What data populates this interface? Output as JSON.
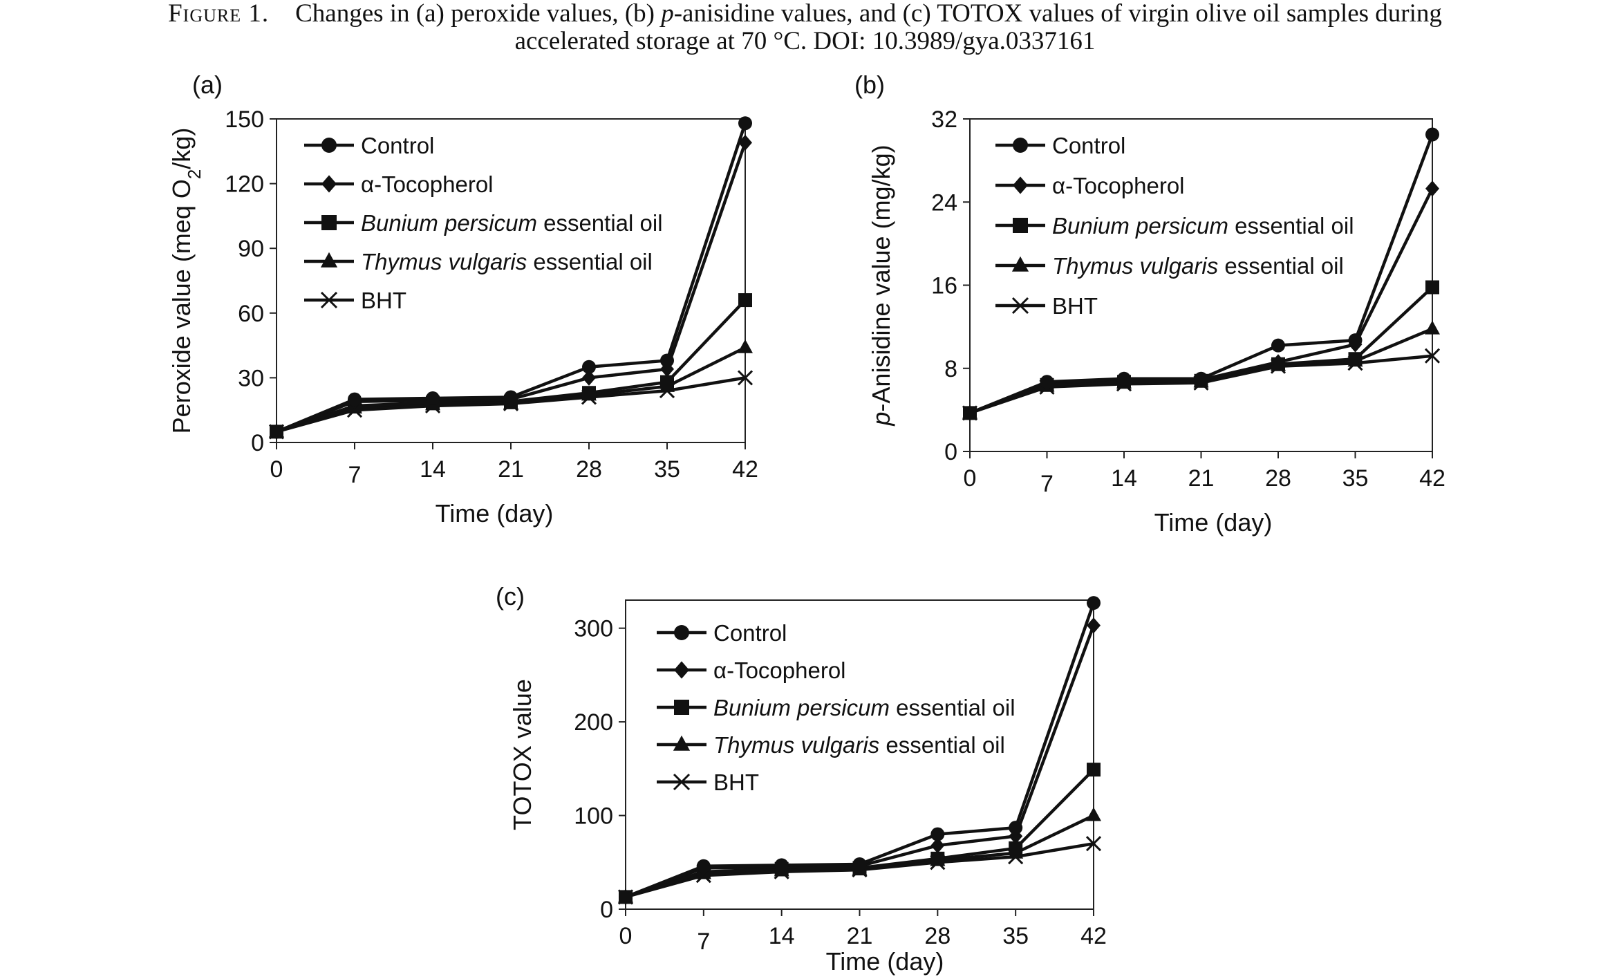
{
  "caption": {
    "label": "Figure 1.",
    "part1": "Changes in (a) peroxide values, (b) ",
    "part2_italic": "p",
    "part3": "-anisidine values, and (c) TOTOX values of virgin olive oil samples during",
    "line2": "accelerated storage at 70 °C. DOI: 10.3989/gya.0337161"
  },
  "chart_data": [
    {
      "panel": "(a)",
      "type": "line",
      "xlabel": "Time (day)",
      "ylabel": "Peroxide value (meq O2/kg)",
      "x": [
        0,
        7,
        14,
        21,
        28,
        35,
        42
      ],
      "ylim": [
        0,
        150
      ],
      "yticks": [
        0,
        30,
        60,
        90,
        120,
        150
      ],
      "grid": false,
      "legend_position": "top-left",
      "series": [
        {
          "name": "Control",
          "marker": "circle",
          "values": [
            5,
            20,
            20.5,
            21,
            35,
            38,
            148
          ]
        },
        {
          "name": "α-Tocopherol",
          "marker": "diamond",
          "values": [
            5,
            19,
            19.5,
            20,
            30,
            34,
            139
          ]
        },
        {
          "name": "Bunium persicum essential oil",
          "italic_part": "Bunium persicum",
          "marker": "square",
          "values": [
            5,
            17,
            18.5,
            19,
            23,
            28,
            66
          ]
        },
        {
          "name": "Thymus vulgaris essential oil",
          "italic_part": "Thymus vulgaris",
          "marker": "triangle",
          "values": [
            5,
            16,
            17.5,
            18,
            22,
            26,
            44
          ]
        },
        {
          "name": "BHT",
          "marker": "x",
          "values": [
            5,
            15,
            17,
            18,
            21,
            24,
            30
          ]
        }
      ]
    },
    {
      "panel": "(b)",
      "type": "line",
      "xlabel": "Time (day)",
      "ylabel": "p-Anisidine value (mg/kg)",
      "x": [
        0,
        7,
        14,
        21,
        28,
        35,
        42
      ],
      "ylim": [
        0,
        32
      ],
      "yticks": [
        0,
        8,
        16,
        24,
        32
      ],
      "grid": false,
      "legend_position": "top-left",
      "series": [
        {
          "name": "Control",
          "marker": "circle",
          "values": [
            3.7,
            6.7,
            7,
            7,
            10.2,
            10.7,
            30.5
          ]
        },
        {
          "name": "α-Tocopherol",
          "marker": "diamond",
          "values": [
            3.7,
            6.6,
            6.9,
            6.9,
            8.6,
            10.3,
            25.3
          ]
        },
        {
          "name": "Bunium persicum essential oil",
          "italic_part": "Bunium persicum",
          "marker": "square",
          "values": [
            3.7,
            6.4,
            6.7,
            6.8,
            8.4,
            8.9,
            15.8
          ]
        },
        {
          "name": "Thymus vulgaris essential oil",
          "italic_part": "Thymus vulgaris",
          "marker": "triangle",
          "values": [
            3.7,
            6.3,
            6.6,
            6.7,
            8.3,
            8.7,
            11.8
          ]
        },
        {
          "name": "BHT",
          "marker": "x",
          "values": [
            3.7,
            6.2,
            6.5,
            6.6,
            8.2,
            8.5,
            9.2
          ]
        }
      ]
    },
    {
      "panel": "(c)",
      "type": "line",
      "xlabel": "Time (day)",
      "ylabel": "TOTOX value",
      "x": [
        0,
        7,
        14,
        21,
        28,
        35,
        42
      ],
      "ylim": [
        0,
        330
      ],
      "yticks": [
        0,
        100,
        200,
        300
      ],
      "grid": false,
      "legend_position": "top-left",
      "series": [
        {
          "name": "Control",
          "marker": "circle",
          "values": [
            13,
            46,
            47,
            48,
            80,
            87,
            327
          ]
        },
        {
          "name": "α-Tocopherol",
          "marker": "diamond",
          "values": [
            13,
            44,
            45,
            46,
            68,
            78,
            303
          ]
        },
        {
          "name": "Bunium persicum essential oil",
          "italic_part": "Bunium persicum",
          "marker": "square",
          "values": [
            13,
            40,
            43,
            44,
            54,
            65,
            149
          ]
        },
        {
          "name": "Thymus vulgaris essential oil",
          "italic_part": "Thymus vulgaris",
          "marker": "triangle",
          "values": [
            13,
            38,
            41,
            42,
            52,
            60,
            100
          ]
        },
        {
          "name": "BHT",
          "marker": "x",
          "values": [
            13,
            36,
            40,
            42,
            50,
            56,
            70
          ]
        }
      ]
    }
  ]
}
